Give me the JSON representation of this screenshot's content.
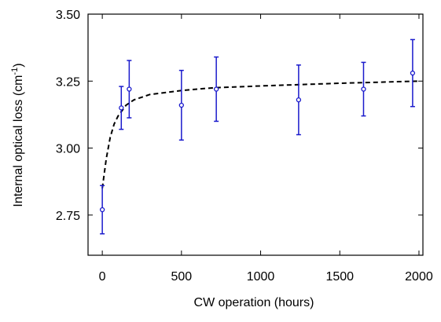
{
  "chart_data": {
    "type": "scatter",
    "x_label": "CW operation (hours)",
    "y_label": {
      "text": "Internal optical loss (cm",
      "sup": "-1",
      "end": ")"
    },
    "xlim": [
      -90,
      2025
    ],
    "ylim": [
      2.6,
      3.5
    ],
    "xticks": [
      0,
      500,
      1000,
      1500,
      2000
    ],
    "yticks": [
      2.75,
      {
        "value": 3.0,
        "label": "3.00"
      },
      3.25,
      {
        "value": 3.5,
        "label": "3.50"
      }
    ],
    "series": [
      {
        "color": "#1a1acc",
        "x": [
          0,
          120,
          170,
          500,
          720,
          1240,
          1650,
          1960
        ],
        "values": [
          2.77,
          3.15,
          3.22,
          3.16,
          3.22,
          3.18,
          3.22,
          3.28
        ],
        "errors": [
          0.09,
          0.08,
          0.107,
          0.13,
          0.12,
          0.13,
          0.1,
          0.125
        ]
      }
    ],
    "fit": {
      "color": "#000000",
      "style": "dashed",
      "x": [
        0,
        25,
        50,
        75,
        100,
        150,
        200,
        300,
        500,
        700,
        1000,
        1500,
        2000
      ],
      "values": [
        2.85,
        2.96,
        3.04,
        3.09,
        3.12,
        3.16,
        3.18,
        3.2,
        3.215,
        3.225,
        3.232,
        3.242,
        3.25
      ]
    }
  }
}
